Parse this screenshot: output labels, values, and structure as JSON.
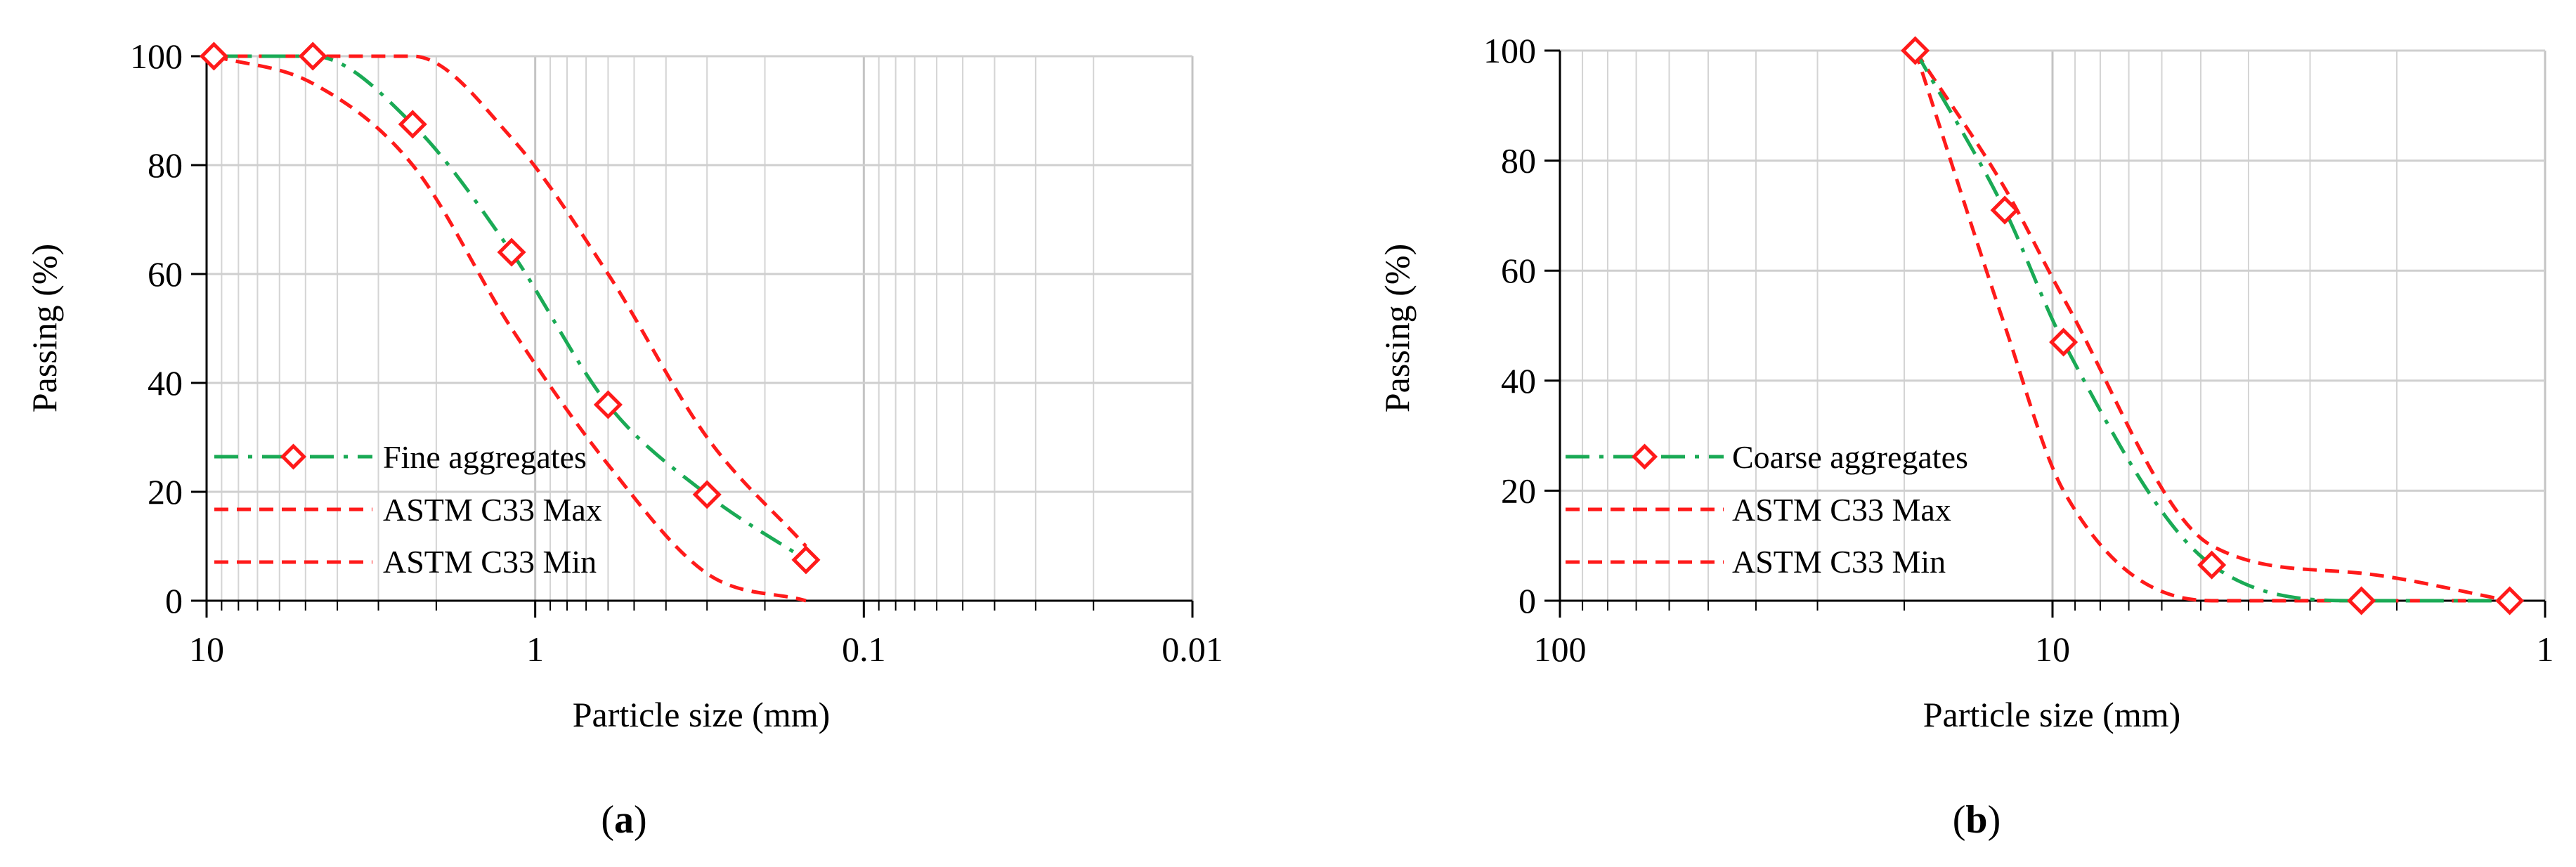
{
  "chart_data": [
    {
      "type": "line",
      "panel_label": "a",
      "xscale": "log",
      "x_reversed": true,
      "xlim": [
        10,
        0.01
      ],
      "ylim": [
        0,
        100
      ],
      "xlabel": "Particle size (mm)",
      "ylabel": "Passing (%)",
      "x_ticks": [
        {
          "value": 10,
          "label": "10"
        },
        {
          "value": 1,
          "label": "1"
        },
        {
          "value": 0.1,
          "label": "0.1"
        },
        {
          "value": 0.01,
          "label": "0.01"
        }
      ],
      "y_ticks": [
        0,
        20,
        40,
        60,
        80,
        100
      ],
      "legend_position": "bottom-left",
      "series": [
        {
          "name": "Fine aggregates",
          "color": "#1aaa55",
          "style": "dash-dot",
          "marker": "diamond",
          "x": [
            9.5,
            4.75,
            2.36,
            1.18,
            0.6,
            0.3,
            0.15
          ],
          "y": [
            100,
            100,
            87.5,
            64,
            36,
            19.5,
            7.5
          ]
        },
        {
          "name": "ASTM C33 Max",
          "color": "#ff1a1a",
          "style": "dashed",
          "marker": "none",
          "x": [
            9.5,
            4.75,
            2.36,
            1.18,
            0.6,
            0.3,
            0.15
          ],
          "y": [
            100,
            100,
            100,
            85,
            60,
            30,
            10
          ]
        },
        {
          "name": "ASTM C33 Min",
          "color": "#ff1a1a",
          "style": "dashed",
          "marker": "none",
          "x": [
            9.5,
            4.75,
            2.36,
            1.18,
            0.6,
            0.3,
            0.15
          ],
          "y": [
            100,
            95,
            80,
            50,
            25,
            5,
            0
          ]
        }
      ]
    },
    {
      "type": "line",
      "panel_label": "b",
      "xscale": "log",
      "x_reversed": true,
      "xlim": [
        100,
        1
      ],
      "ylim": [
        0,
        100
      ],
      "xlabel": "Particle size (mm)",
      "ylabel": "Passing (%)",
      "x_ticks": [
        {
          "value": 100,
          "label": "100"
        },
        {
          "value": 10,
          "label": "10"
        },
        {
          "value": 1,
          "label": "1"
        }
      ],
      "y_ticks": [
        0,
        20,
        40,
        60,
        80,
        100
      ],
      "legend_position": "bottom-left",
      "series": [
        {
          "name": "Coarse aggregates",
          "color": "#1aaa55",
          "style": "dash-dot",
          "marker": "diamond",
          "x": [
            19,
            12.5,
            9.5,
            4.75,
            2.36,
            1.18
          ],
          "y": [
            100,
            71,
            47,
            6.5,
            0,
            0
          ]
        },
        {
          "name": "ASTM C33 Max",
          "color": "#ff1a1a",
          "style": "dashed",
          "marker": "none",
          "x": [
            19,
            12.5,
            9.5,
            4.75,
            2.36,
            1.18
          ],
          "y": [
            100,
            75,
            55,
            10,
            5,
            0
          ]
        },
        {
          "name": "ASTM C33 Min",
          "color": "#ff1a1a",
          "style": "dashed",
          "marker": "none",
          "x": [
            19,
            12.5,
            9.5,
            4.75,
            2.36,
            1.18
          ],
          "y": [
            100,
            50,
            20,
            0,
            0,
            0
          ]
        }
      ]
    }
  ]
}
